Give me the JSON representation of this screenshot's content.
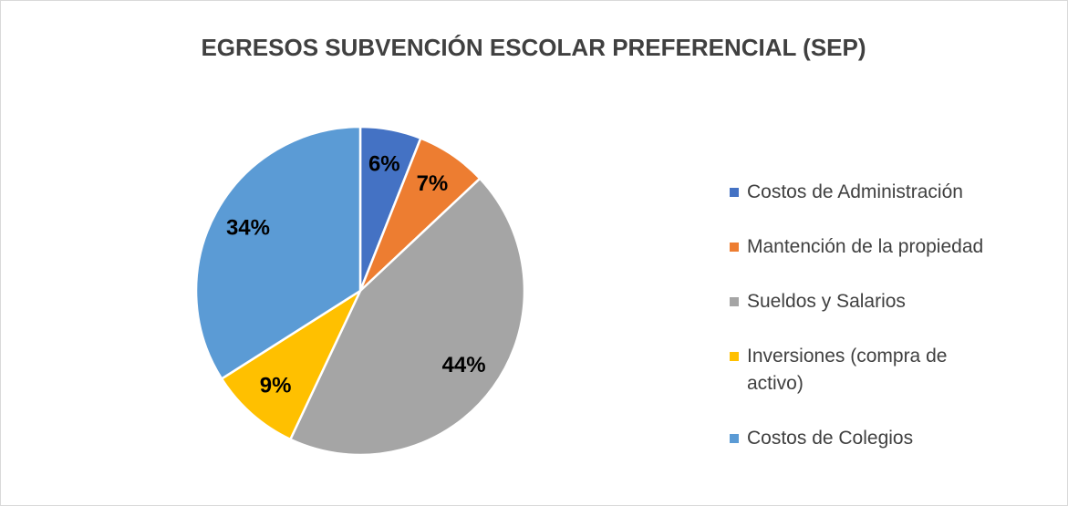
{
  "chart_data": {
    "type": "pie",
    "title": "EGRESOS SUBVENCIÓN ESCOLAR PREFERENCIAL (SEP)",
    "categories": [
      "Costos de Administración",
      "Mantención de la propiedad",
      "Sueldos y Salarios",
      "Inversiones (compra de activo)",
      "Costos de Colegios"
    ],
    "values": [
      6,
      7,
      44,
      9,
      34
    ],
    "value_labels": [
      "6%",
      "7%",
      "44%",
      "9%",
      "34%"
    ],
    "colors": [
      "#4472c4",
      "#ed7d31",
      "#a5a5a5",
      "#ffc000",
      "#5b9bd5"
    ],
    "legend": "right"
  }
}
